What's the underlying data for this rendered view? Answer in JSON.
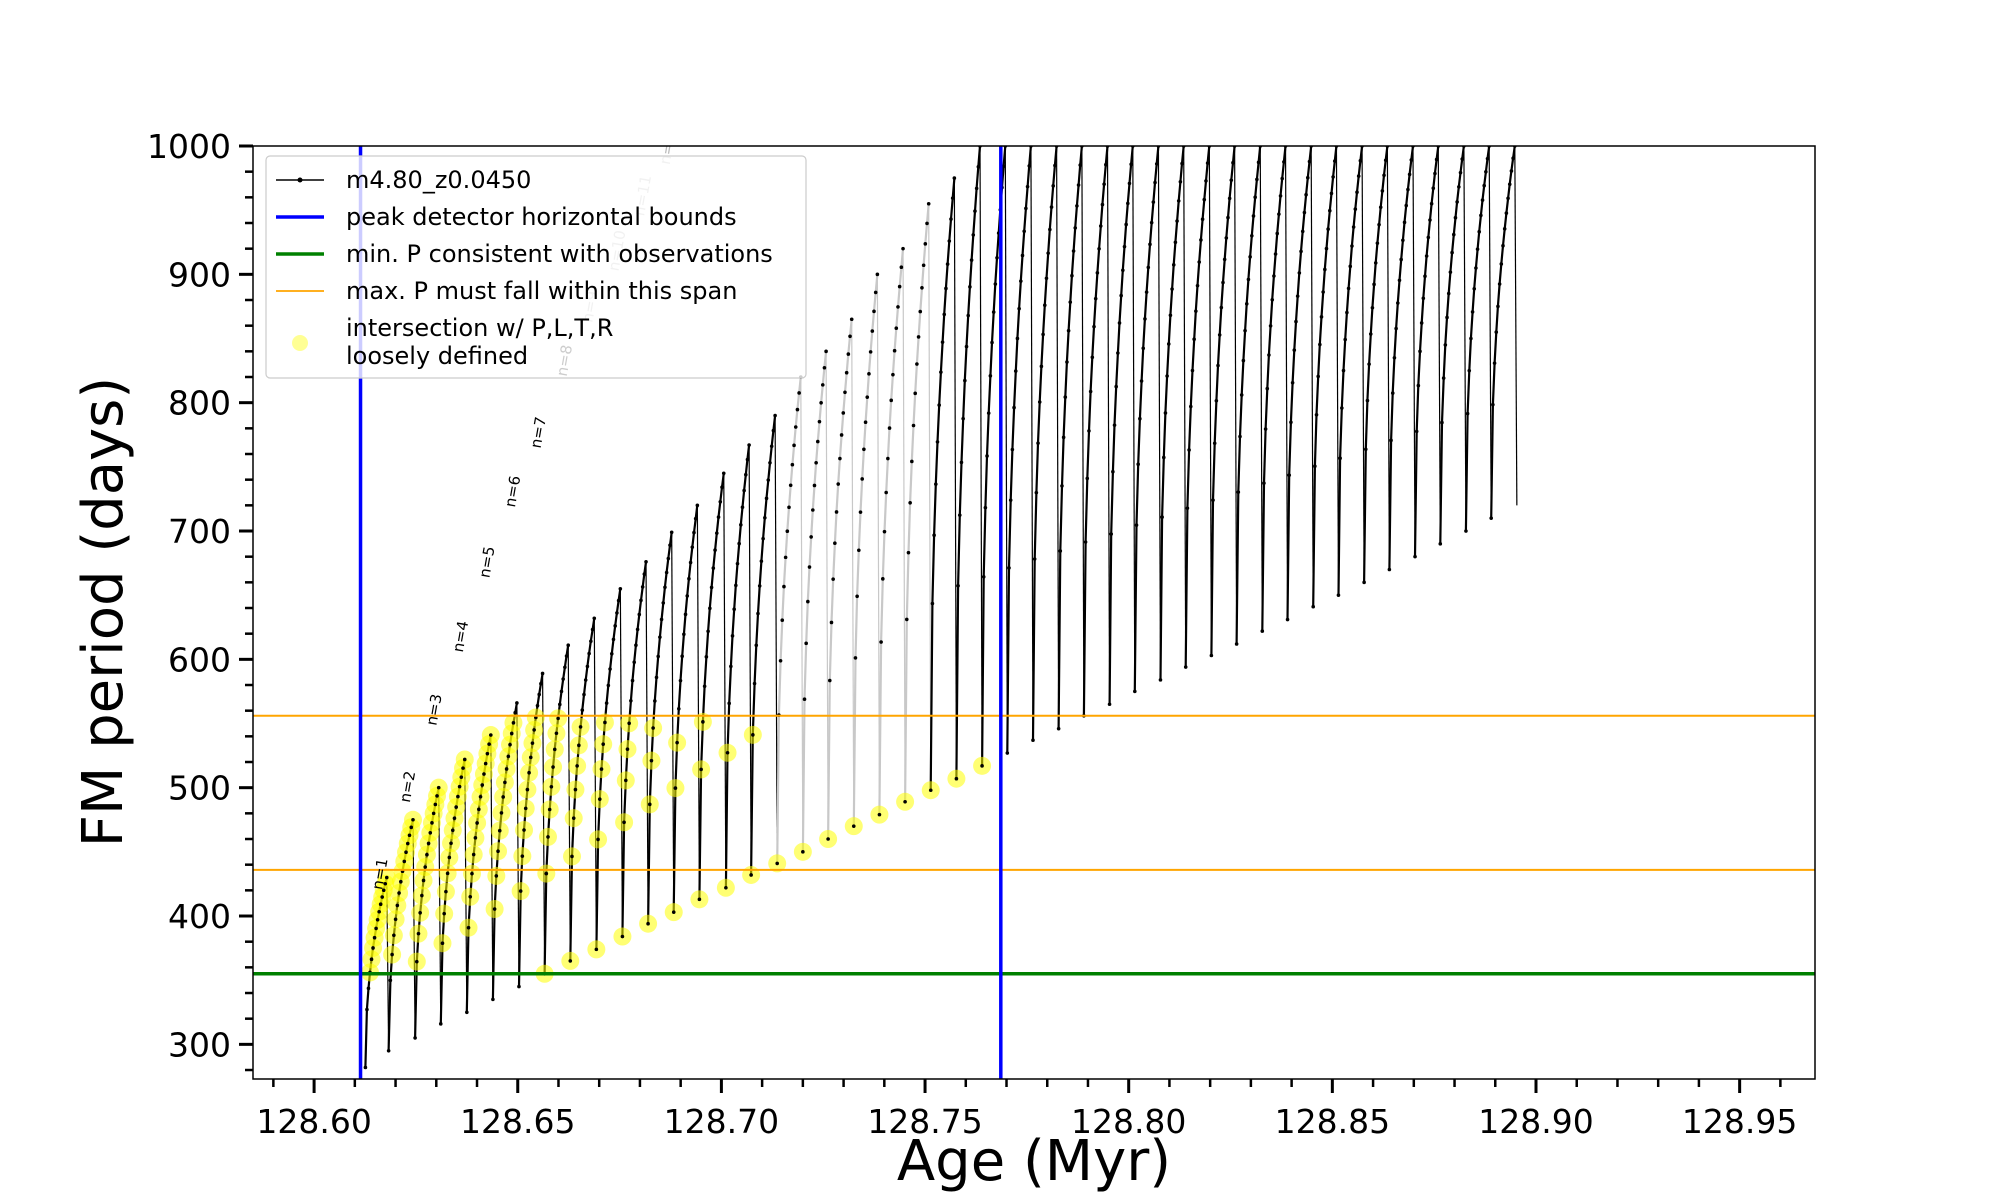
{
  "chart_data": {
    "type": "line",
    "xlabel": "Age (Myr)",
    "ylabel": "FM period (days)",
    "xlim": [
      128.585,
      128.9685
    ],
    "ylim": [
      273,
      1000
    ],
    "xticks": [
      "128.60",
      "128.65",
      "128.70",
      "128.75",
      "128.80",
      "128.85",
      "128.90",
      "128.95"
    ],
    "yticks": [
      "300",
      "400",
      "500",
      "600",
      "700",
      "800",
      "900",
      "1000"
    ],
    "grid": false,
    "legend_placement": "top-left",
    "legend": [
      {
        "label": "m4.80_z0.0450",
        "style": "black line with point markers"
      },
      {
        "label": "peak detector horizontal bounds",
        "style": "blue line"
      },
      {
        "label": "min. P consistent with observations",
        "style": "green line"
      },
      {
        "label": "max. P must fall within this span",
        "style": "orange line"
      },
      {
        "label": "intersection w/ P,L,T,R\nloosely defined",
        "style": "yellow marker"
      }
    ],
    "vertical_lines": {
      "name": "peak detector horizontal bounds",
      "color": "#0000ff",
      "x": [
        128.6114,
        128.7686
      ]
    },
    "min_P_line": {
      "name": "min. P consistent with observations",
      "color": "#008000",
      "y": 355
    },
    "max_P_span": {
      "name": "max. P must fall within this span",
      "color": "#ffa500",
      "y": [
        436,
        556
      ]
    },
    "model_track": {
      "name": "m4.80_z0.0450",
      "color": "#000000",
      "note": "thermal pulse cycles: period rises along each cycle to a peak, then drops",
      "pulses": [
        {
          "x": 128.6126,
          "min": 282,
          "peak": 430
        },
        {
          "x": 128.6183,
          "min": 295,
          "peak": 475
        },
        {
          "x": 128.6248,
          "min": 305,
          "peak": 500
        },
        {
          "x": 128.6311,
          "min": 316,
          "peak": 522
        },
        {
          "x": 128.6375,
          "min": 325,
          "peak": 541
        },
        {
          "x": 128.6439,
          "min": 335,
          "peak": 566
        },
        {
          "x": 128.6503,
          "min": 345,
          "peak": 589
        },
        {
          "x": 128.6566,
          "min": 355,
          "peak": 611
        },
        {
          "x": 128.6629,
          "min": 365,
          "peak": 632
        },
        {
          "x": 128.6693,
          "min": 374,
          "peak": 655
        },
        {
          "x": 128.6757,
          "min": 384,
          "peak": 676
        },
        {
          "x": 128.682,
          "min": 394,
          "peak": 699
        },
        {
          "x": 128.6883,
          "min": 403,
          "peak": 720
        },
        {
          "x": 128.6946,
          "min": 413,
          "peak": 745
        },
        {
          "x": 128.7011,
          "min": 422,
          "peak": 767
        },
        {
          "x": 128.7073,
          "min": 432,
          "peak": 790
        },
        {
          "x": 128.7137,
          "min": 441,
          "peak": 820
        },
        {
          "x": 128.72,
          "min": 450,
          "peak": 840
        },
        {
          "x": 128.7262,
          "min": 460,
          "peak": 865
        },
        {
          "x": 128.7325,
          "min": 470,
          "peak": 900
        },
        {
          "x": 128.7388,
          "min": 479,
          "peak": 920
        },
        {
          "x": 128.7451,
          "min": 489,
          "peak": 955
        },
        {
          "x": 128.7514,
          "min": 498,
          "peak": 975
        },
        {
          "x": 128.7577,
          "min": 507,
          "peak": 1000
        },
        {
          "x": 128.764,
          "min": 517,
          "peak": 1000
        },
        {
          "x": 128.7702,
          "min": 527,
          "peak": 1000
        },
        {
          "x": 128.7765,
          "min": 537,
          "peak": 1000
        },
        {
          "x": 128.7828,
          "min": 546,
          "peak": 1000
        },
        {
          "x": 128.789,
          "min": 556,
          "peak": 1000
        },
        {
          "x": 128.7953,
          "min": 565,
          "peak": 1000
        },
        {
          "x": 128.8015,
          "min": 575,
          "peak": 1000
        },
        {
          "x": 128.8078,
          "min": 584,
          "peak": 1000
        },
        {
          "x": 128.814,
          "min": 594,
          "peak": 1000
        },
        {
          "x": 128.8203,
          "min": 603,
          "peak": 1000
        },
        {
          "x": 128.8265,
          "min": 612,
          "peak": 1000
        },
        {
          "x": 128.8328,
          "min": 622,
          "peak": 1000
        },
        {
          "x": 128.839,
          "min": 631,
          "peak": 1000
        },
        {
          "x": 128.8453,
          "min": 641,
          "peak": 1000
        },
        {
          "x": 128.8515,
          "min": 650,
          "peak": 1000
        },
        {
          "x": 128.8578,
          "min": 660,
          "peak": 1000
        },
        {
          "x": 128.864,
          "min": 670,
          "peak": 1000
        },
        {
          "x": 128.8703,
          "min": 680,
          "peak": 1000
        },
        {
          "x": 128.8765,
          "min": 690,
          "peak": 1000
        },
        {
          "x": 128.8828,
          "min": 700,
          "peak": 1000
        },
        {
          "x": 128.889,
          "min": 710,
          "peak": 1000
        }
      ]
    },
    "intersection": {
      "name": "intersection w/ P,L,T,R loosely defined",
      "color": "#ffff00",
      "x_range": [
        128.6114,
        128.7686
      ],
      "y_range": [
        355,
        556
      ]
    },
    "annotations": [
      {
        "text": "n=1",
        "x": 128.6167,
        "y": 420,
        "color": "#000000"
      },
      {
        "text": "n=2",
        "x": 128.6235,
        "y": 488,
        "color": "#000000"
      },
      {
        "text": "n=3",
        "x": 128.63,
        "y": 548,
        "color": "#000000"
      },
      {
        "text": "n=4",
        "x": 128.6365,
        "y": 605,
        "color": "#000000"
      },
      {
        "text": "n=5",
        "x": 128.643,
        "y": 663,
        "color": "#000000"
      },
      {
        "text": "n=6",
        "x": 128.6493,
        "y": 718,
        "color": "#000000"
      },
      {
        "text": "n=7",
        "x": 128.6556,
        "y": 764,
        "color": "#000000"
      },
      {
        "text": "n=8",
        "x": 128.662,
        "y": 820,
        "color": "#000000"
      },
      {
        "text": "n=9",
        "x": 128.6683,
        "y": 862,
        "color": "#bbbbbb"
      },
      {
        "text": "n=10",
        "x": 128.6747,
        "y": 902,
        "color": "#bbbbbb"
      },
      {
        "text": "n=11",
        "x": 128.681,
        "y": 945,
        "color": "#bbbbbb"
      },
      {
        "text": "n=12",
        "x": 128.6873,
        "y": 985,
        "color": "#bbbbbb"
      }
    ]
  }
}
